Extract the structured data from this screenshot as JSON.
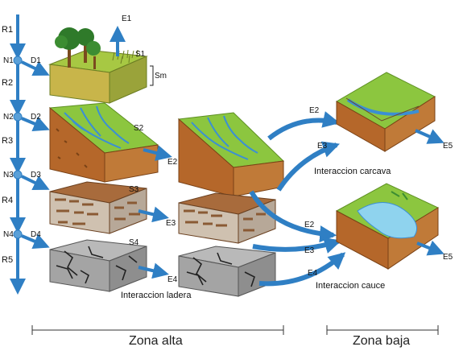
{
  "rain_levels": [
    "R1",
    "R2",
    "R3",
    "R4",
    "R5"
  ],
  "nodes": [
    "N1",
    "N2",
    "N3",
    "N4"
  ],
  "drainage": [
    "D1",
    "D2",
    "D3",
    "D4"
  ],
  "storages": [
    "S1",
    "Sm",
    "S2",
    "S3",
    "S4"
  ],
  "flows": {
    "e1": "E1",
    "e2": "E2",
    "e3": "E3",
    "e4": "E4",
    "e5": "E5"
  },
  "interactions": {
    "ladera": "Interaccion ladera",
    "carcava": "Interaccion carcava",
    "cauce": "Interaccion cauce"
  },
  "zones": {
    "alta": "Zona alta",
    "baja": "Zona baja"
  },
  "colors": {
    "arrow": "#2f7fc4",
    "grass": "#8cc63f",
    "grass_dark": "#5d8f22",
    "soil": "#b5672a",
    "soil_dark": "#7a4216",
    "rock": "#9a9a9a",
    "water": "#8fd3ee",
    "tree": "#2f7a2a",
    "trunk": "#7a4a1e"
  }
}
